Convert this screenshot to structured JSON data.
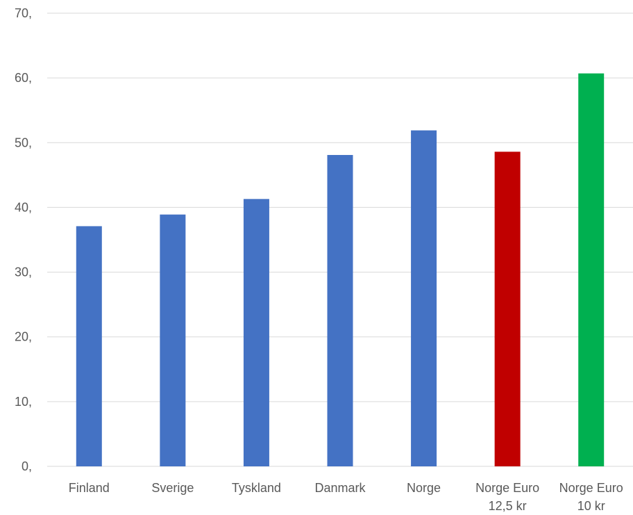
{
  "chart_data": {
    "type": "bar",
    "title": "",
    "xlabel": "",
    "ylabel": "",
    "ylim": [
      0,
      70
    ],
    "grid": true,
    "y_ticks": [
      "0,",
      "10,",
      "20,",
      "30,",
      "40,",
      "50,",
      "60,",
      "70,"
    ],
    "categories": [
      [
        "Finland"
      ],
      [
        "Sverige"
      ],
      [
        "Tyskland"
      ],
      [
        "Danmark"
      ],
      [
        "Norge"
      ],
      [
        "Norge Euro",
        "12,5 kr"
      ],
      [
        "Norge Euro",
        "10 kr"
      ]
    ],
    "values": [
      37.1,
      38.9,
      41.3,
      48.1,
      51.9,
      48.6,
      60.7
    ],
    "colors": [
      "#4472C4",
      "#4472C4",
      "#4472C4",
      "#4472C4",
      "#4472C4",
      "#C00000",
      "#00B050"
    ],
    "colors_meta": {
      "gridline": "#D9D9D9",
      "text": "#595959"
    }
  }
}
